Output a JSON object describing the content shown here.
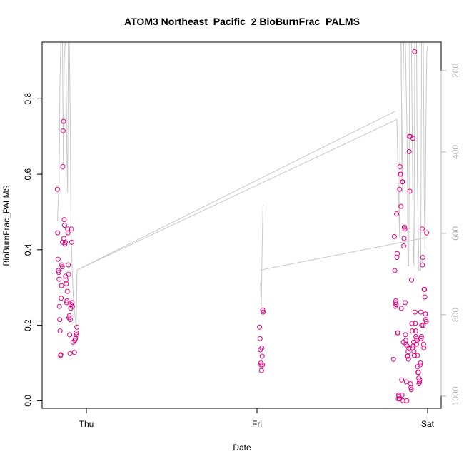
{
  "chart_data": {
    "type": "scatter",
    "title": "ATOM3 Northeast_Pacific_2 BioBurnFrac_PALMS",
    "xlabel": "Date",
    "ylabel": "BioBurnFrac_PALMS",
    "x_ticks": [
      "Thu",
      "Fri",
      "Sat"
    ],
    "y_ticks": [
      0.0,
      0.2,
      0.4,
      0.6,
      0.8
    ],
    "y_ticks_labels": [
      "0.0",
      "0.2",
      "0.4",
      "0.6",
      "0.8"
    ],
    "ylim": [
      -0.02,
      0.95
    ],
    "right_axis_ticks": [
      200,
      400,
      600,
      800,
      1000
    ],
    "right_axis_labels": [
      "200",
      "400",
      "600",
      "800",
      "1000"
    ],
    "right_axis_lim": [
      1030,
      130
    ],
    "colors": {
      "points": "#e6007e",
      "line": "#c8c8c8",
      "right_axis": "#b3b3b3"
    },
    "x_domain_days": [
      -0.2,
      2.05
    ],
    "series": [
      {
        "points": [
          [
            -0.17,
            0.56
          ],
          [
            -0.168,
            0.445
          ],
          [
            -0.166,
            0.375
          ],
          [
            -0.164,
            0.345
          ],
          [
            -0.162,
            0.34
          ],
          [
            -0.16,
            0.322
          ],
          [
            -0.158,
            0.25
          ],
          [
            -0.156,
            0.215
          ],
          [
            -0.154,
            0.185
          ],
          [
            -0.152,
            0.12
          ],
          [
            -0.15,
            0.122
          ],
          [
            -0.148,
            0.272
          ],
          [
            -0.146,
            0.305
          ],
          [
            -0.144,
            0.36
          ],
          [
            -0.142,
            0.355
          ],
          [
            -0.14,
            0.42
          ],
          [
            -0.138,
            0.62
          ],
          [
            -0.136,
            0.715
          ],
          [
            -0.134,
            0.74
          ],
          [
            -0.132,
            0.43
          ],
          [
            -0.13,
            0.48
          ],
          [
            -0.128,
            0.465
          ],
          [
            -0.126,
            0.415
          ],
          [
            -0.124,
            0.42
          ],
          [
            -0.122,
            0.33
          ],
          [
            -0.12,
            0.32
          ],
          [
            -0.118,
            0.31
          ],
          [
            -0.116,
            0.26
          ],
          [
            -0.114,
            0.265
          ],
          [
            -0.112,
            0.29
          ],
          [
            -0.11,
            0.455
          ],
          [
            -0.108,
            0.445
          ],
          [
            -0.106,
            0.36
          ],
          [
            -0.104,
            0.335
          ],
          [
            -0.102,
            0.22
          ],
          [
            -0.1,
            0.225
          ],
          [
            -0.098,
            0.175
          ],
          [
            -0.096,
            0.125
          ],
          [
            -0.094,
            0.215
          ],
          [
            -0.092,
            0.245
          ],
          [
            -0.09,
            0.255
          ],
          [
            -0.088,
            0.455
          ],
          [
            -0.086,
            0.42
          ],
          [
            -0.084,
            0.26
          ],
          [
            -0.082,
            0.25
          ],
          [
            -0.078,
            0.155
          ],
          [
            -0.07,
            0.128
          ],
          [
            -0.068,
            0.16
          ],
          [
            -0.064,
            0.165
          ],
          [
            -0.06,
            0.18
          ],
          [
            -0.058,
            0.175
          ],
          [
            -0.056,
            0.195
          ],
          [
            1.015,
            0.195
          ],
          [
            1.018,
            0.165
          ],
          [
            1.02,
            0.135
          ],
          [
            1.022,
            0.1
          ],
          [
            1.024,
            0.095
          ],
          [
            1.026,
            0.08
          ],
          [
            1.028,
            0.14
          ],
          [
            1.03,
            0.118
          ],
          [
            1.032,
            0.095
          ],
          [
            1.034,
            0.24
          ],
          [
            1.036,
            0.235
          ],
          [
            1.8,
            0.11
          ],
          [
            1.805,
            0.435
          ],
          [
            1.808,
            0.345
          ],
          [
            1.81,
            0.25
          ],
          [
            1.812,
            0.26
          ],
          [
            1.814,
            0.265
          ],
          [
            1.816,
            0.255
          ],
          [
            1.818,
            0.495
          ],
          [
            1.82,
            0.38
          ],
          [
            1.822,
            0.39
          ],
          [
            1.824,
            0.18
          ],
          [
            1.826,
            0.18
          ],
          [
            1.828,
            0.005
          ],
          [
            1.83,
            0.015
          ],
          [
            1.832,
            0.012
          ],
          [
            1.834,
            0.005
          ],
          [
            1.836,
            0.56
          ],
          [
            1.838,
            0.62
          ],
          [
            1.84,
            0.6
          ],
          [
            1.842,
            0.6
          ],
          [
            1.844,
            0.515
          ],
          [
            1.846,
            0.245
          ],
          [
            1.848,
            0.055
          ],
          [
            1.85,
            0.015
          ],
          [
            1.852,
            0.58
          ],
          [
            1.854,
            0.58
          ],
          [
            1.856,
            0.0
          ],
          [
            1.858,
            0.155
          ],
          [
            1.86,
            0.41
          ],
          [
            1.862,
            0.43
          ],
          [
            1.864,
            0.46
          ],
          [
            1.866,
            0.455
          ],
          [
            1.868,
            0.26
          ],
          [
            1.87,
            0.175
          ],
          [
            1.872,
            0.16
          ],
          [
            1.874,
            0.15
          ],
          [
            1.876,
            0.05
          ],
          [
            1.878,
            0.0
          ],
          [
            1.88,
            0.145
          ],
          [
            1.882,
            0.118
          ],
          [
            1.884,
            0.118
          ],
          [
            1.886,
            0.13
          ],
          [
            1.888,
            0.11
          ],
          [
            1.89,
            0.138
          ],
          [
            1.892,
            0.66
          ],
          [
            1.894,
            0.7
          ],
          [
            1.896,
            0.555
          ],
          [
            1.898,
            0.7
          ],
          [
            1.9,
            0.045
          ],
          [
            1.902,
            0.035
          ],
          [
            1.904,
            0.03
          ],
          [
            1.906,
            0.32
          ],
          [
            1.908,
            0.205
          ],
          [
            1.91,
            0.185
          ],
          [
            1.912,
            0.14
          ],
          [
            1.914,
            0.695
          ],
          [
            1.916,
            0.145
          ],
          [
            1.918,
            0.155
          ],
          [
            1.92,
            0.13
          ],
          [
            1.922,
            0.12
          ],
          [
            1.924,
            0.925
          ],
          [
            1.926,
            0.235
          ],
          [
            1.928,
            0.205
          ],
          [
            1.93,
            0.185
          ],
          [
            1.932,
            0.17
          ],
          [
            1.934,
            0.15
          ],
          [
            1.936,
            0.165
          ],
          [
            1.938,
            0.16
          ],
          [
            1.94,
            0.12
          ],
          [
            1.942,
            0.09
          ],
          [
            1.944,
            0.075
          ],
          [
            1.946,
            0.075
          ],
          [
            1.948,
            0.06
          ],
          [
            1.95,
            0.045
          ],
          [
            1.952,
            0.05
          ],
          [
            1.954,
            0.055
          ],
          [
            1.956,
            0.095
          ],
          [
            1.958,
            0.1
          ],
          [
            1.96,
            0.235
          ],
          [
            1.962,
            0.165
          ],
          [
            1.964,
            0.17
          ],
          [
            1.966,
            0.2
          ],
          [
            1.968,
            0.455
          ],
          [
            1.97,
            0.36
          ],
          [
            1.972,
            0.38
          ],
          [
            1.974,
            0.2
          ],
          [
            1.976,
            0.15
          ],
          [
            1.978,
            0.14
          ],
          [
            1.98,
            0.295
          ],
          [
            1.982,
            0.295
          ],
          [
            1.984,
            0.275
          ],
          [
            1.986,
            0.23
          ],
          [
            1.988,
            0.23
          ],
          [
            1.99,
            0.215
          ],
          [
            1.992,
            0.21
          ],
          [
            1.994,
            0.445
          ]
        ]
      },
      {
        "right_axis": true,
        "points": [
          [
            -0.17,
            570
          ],
          [
            -0.16,
            470
          ],
          [
            -0.155,
            220
          ],
          [
            -0.15,
            130
          ],
          [
            -0.148,
            130
          ],
          [
            -0.14,
            130
          ],
          [
            -0.135,
            430
          ],
          [
            -0.13,
            180
          ],
          [
            -0.125,
            130
          ],
          [
            -0.12,
            130
          ],
          [
            -0.115,
            380
          ],
          [
            -0.11,
            500
          ],
          [
            -0.106,
            130
          ],
          [
            -0.1,
            130
          ],
          [
            -0.095,
            300
          ],
          [
            -0.09,
            600
          ],
          [
            -0.082,
            700
          ],
          [
            -0.076,
            760
          ],
          [
            -0.07,
            790
          ],
          [
            -0.065,
            810
          ],
          [
            -0.06,
            830
          ],
          [
            -0.055,
            690
          ],
          [
            1.82,
            320
          ],
          [
            1.83,
            510
          ],
          [
            1.836,
            610
          ],
          [
            1.84,
            130
          ],
          [
            1.845,
            130
          ],
          [
            1.85,
            500
          ],
          [
            1.855,
            290
          ],
          [
            1.86,
            130
          ],
          [
            1.87,
            130
          ],
          [
            1.875,
            250
          ],
          [
            1.88,
            370
          ],
          [
            1.885,
            680
          ],
          [
            1.89,
            680
          ],
          [
            1.895,
            130
          ],
          [
            1.905,
            130
          ],
          [
            1.91,
            350
          ],
          [
            1.915,
            590
          ],
          [
            1.92,
            680
          ],
          [
            1.925,
            130
          ],
          [
            1.935,
            130
          ],
          [
            1.94,
            480
          ],
          [
            1.95,
            690
          ],
          [
            1.96,
            690
          ],
          [
            1.965,
            130
          ],
          [
            1.975,
            130
          ],
          [
            1.98,
            500
          ],
          [
            1.985,
            640
          ],
          [
            1.99,
            340
          ],
          [
            1.995,
            160
          ],
          [
            2.0,
            140
          ]
        ]
      },
      {
        "right_axis": true,
        "points": [
          [
            -0.055,
            690
          ],
          [
            1.81,
            300
          ]
        ]
      },
      {
        "right_axis": true,
        "points": [
          [
            1.02,
            720
          ],
          [
            1.025,
            780
          ],
          [
            1.03,
            640
          ],
          [
            1.035,
            530
          ]
        ]
      },
      {
        "right_axis": true,
        "points": [
          [
            1.02,
            690
          ],
          [
            1.995,
            610
          ]
        ]
      }
    ]
  }
}
